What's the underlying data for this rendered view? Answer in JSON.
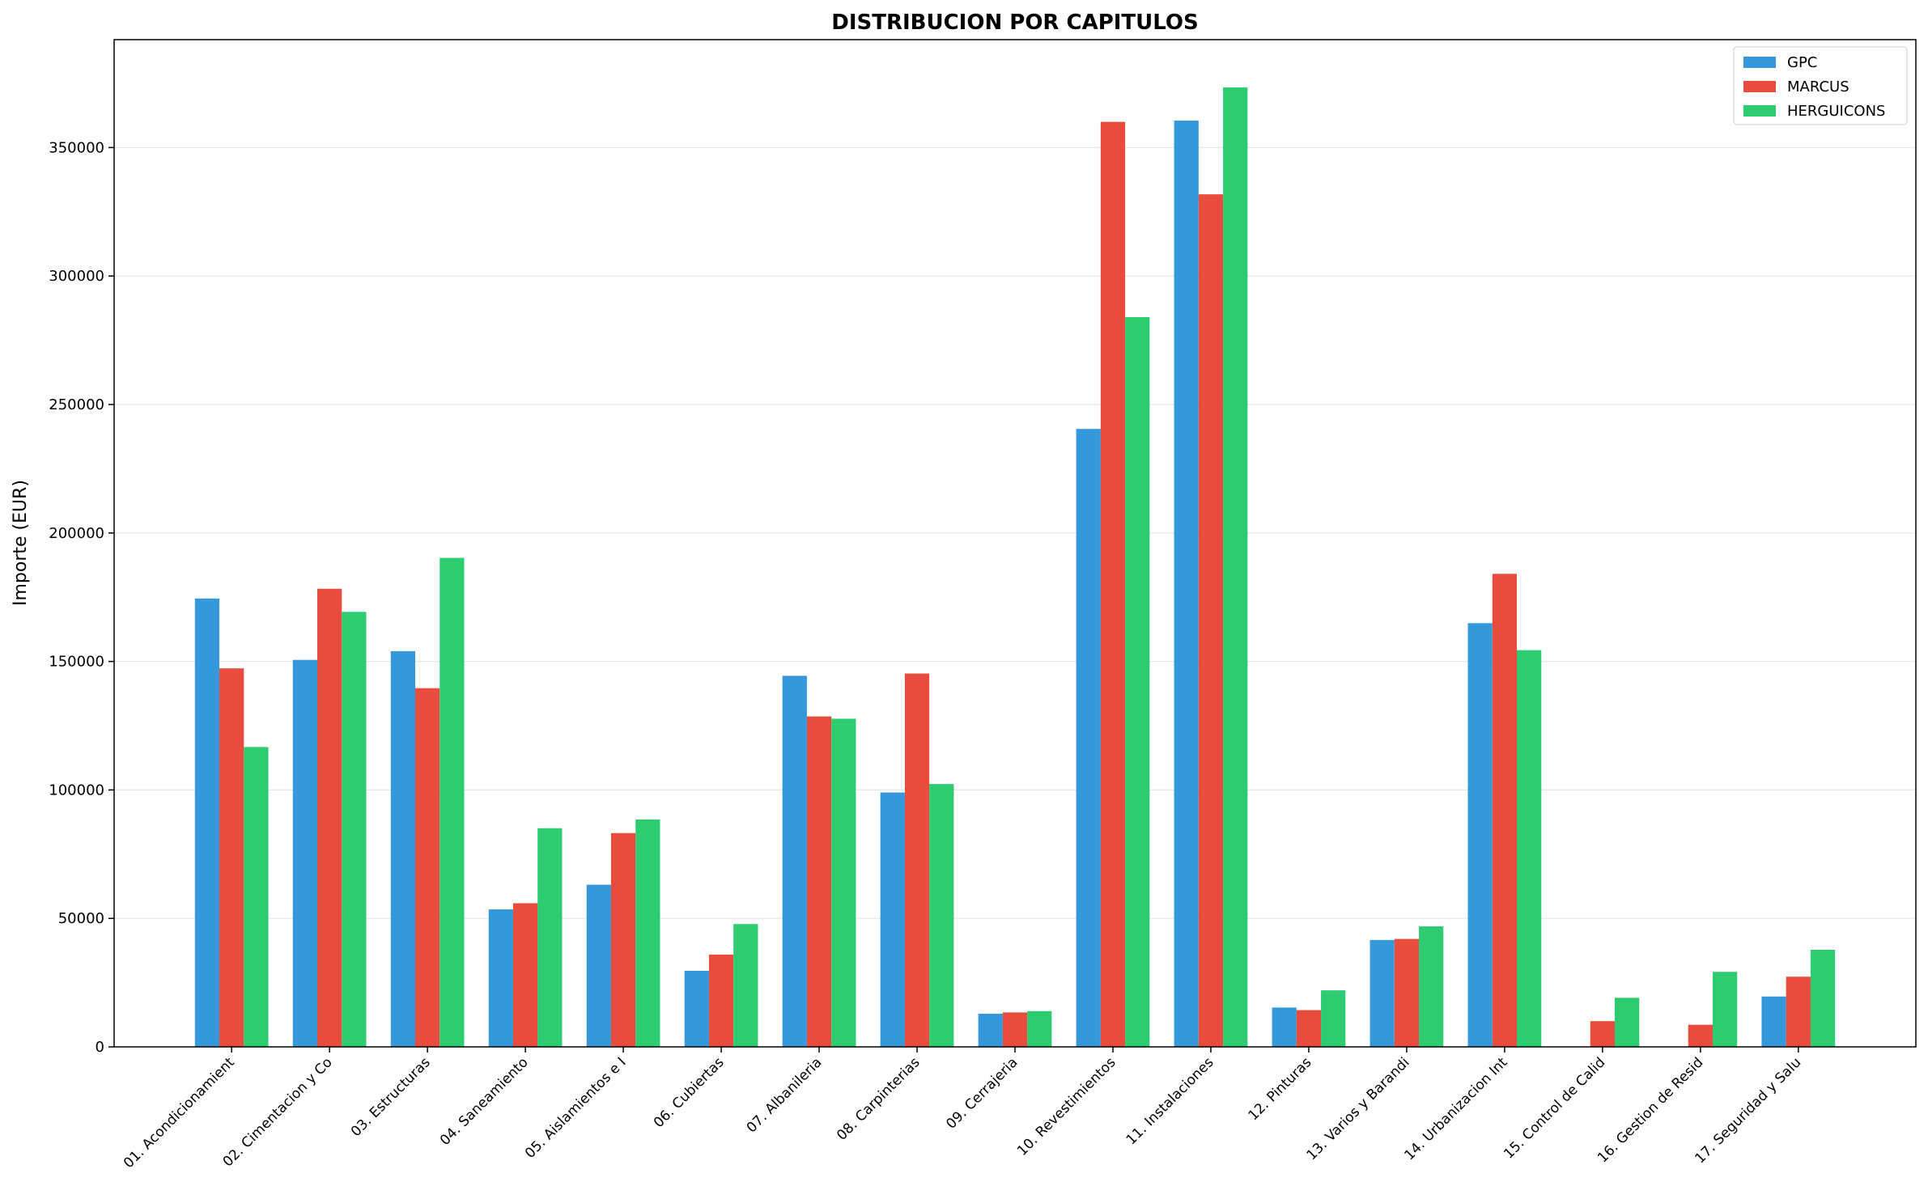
{
  "chart_data": {
    "type": "bar",
    "title": "DISTRIBUCION POR CAPITULOS",
    "xlabel": "",
    "ylabel": "Importe (EUR)",
    "ylim": [
      0,
      392000
    ],
    "yticks": [
      0,
      50000,
      100000,
      150000,
      200000,
      250000,
      300000,
      350000
    ],
    "grid": "horizontal",
    "legend_position": "top-right",
    "categories": [
      "01. Acondicionamient",
      "02. Cimentacion y Co",
      "03. Estructuras",
      "04. Saneamiento",
      "05. Aislamientos e I",
      "06. Cubiertas",
      "07. Albanileria",
      "08. Carpinterias",
      "09. Cerrajeria",
      "10. Revestimientos",
      "11. Instalaciones",
      "12. Pinturas",
      "13. Varios y Barandi",
      "14. Urbanizacion Int",
      "15. Control de Calid",
      "16. Gestion de Resid",
      "17. Seguridad y Salu"
    ],
    "series": [
      {
        "name": "GPC",
        "color": "#3498db",
        "values": [
          174500,
          150600,
          154000,
          53500,
          63100,
          29600,
          144400,
          99000,
          12900,
          240500,
          360500,
          15300,
          41600,
          164900,
          0,
          0,
          19600
        ]
      },
      {
        "name": "MARCUS",
        "color": "#e74c3c",
        "values": [
          147300,
          178300,
          139600,
          55900,
          83200,
          35900,
          128600,
          145300,
          13400,
          360000,
          331800,
          14300,
          42000,
          184100,
          10000,
          8600,
          27300
        ]
      },
      {
        "name": "HERGUICONS",
        "color": "#2ecc71",
        "values": [
          116700,
          169300,
          190300,
          85100,
          88500,
          47800,
          127700,
          102300,
          13900,
          284000,
          373400,
          22000,
          46900,
          154400,
          19100,
          29200,
          37800
        ]
      }
    ]
  }
}
